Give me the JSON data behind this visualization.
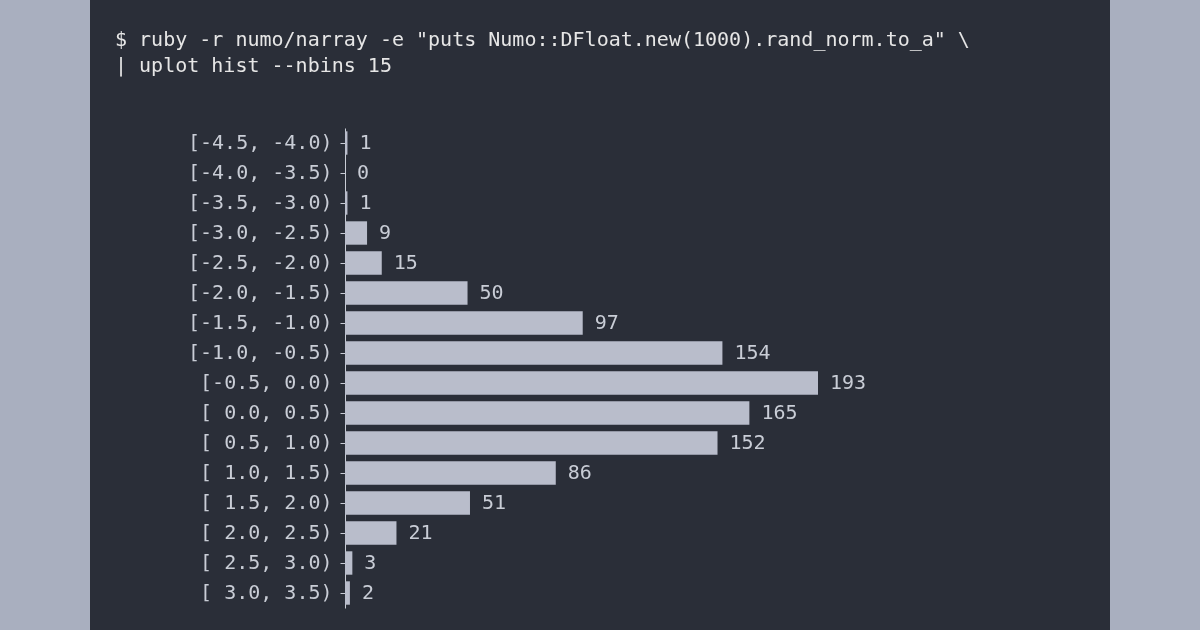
{
  "chart_data": {
    "type": "bar",
    "orientation": "horizontal",
    "title": "$ ruby -r numo/narray -e \"puts Numo::DFloat.new(1000).rand_norm.to_a\" \\",
    "subtitle": "| uplot hist --nbins 15",
    "categories": [
      "[-4.5, -4.0)",
      "[-4.0, -3.5)",
      "[-3.5, -3.0)",
      "[-3.0, -2.5)",
      "[-2.5, -2.0)",
      "[-2.0, -1.5)",
      "[-1.5, -1.0)",
      "[-1.0, -0.5)",
      "[-0.5,  0.0)",
      "[ 0.0,  0.5)",
      "[ 0.5,  1.0)",
      "[ 1.0,  1.5)",
      "[ 1.5,  2.0)",
      "[ 2.0,  2.5)",
      "[ 2.5,  3.0)",
      "[ 3.0,  3.5)"
    ],
    "values": [
      1,
      0,
      1,
      9,
      15,
      50,
      97,
      154,
      193,
      165,
      152,
      86,
      51,
      21,
      3,
      2
    ],
    "color": "#b9bdcb",
    "data_labels": true
  }
}
